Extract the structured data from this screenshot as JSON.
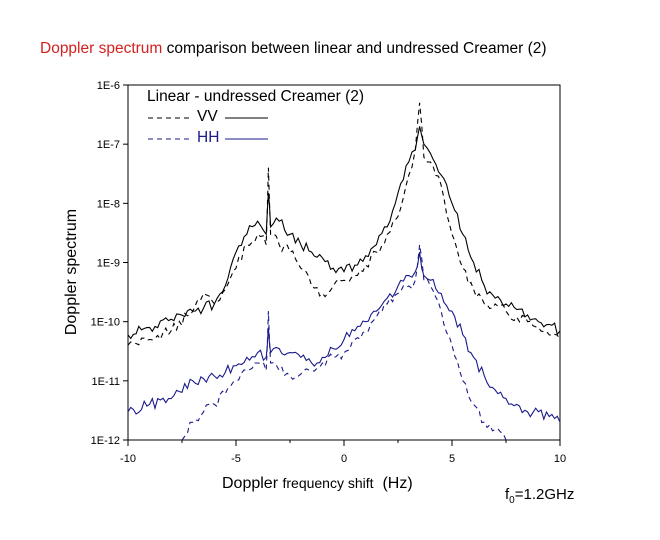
{
  "title": {
    "highlight": "Doppler spectrum",
    "rest": "comparison between linear and undressed Creamer (2)"
  },
  "xlabel": {
    "part1": "Doppler",
    "part2": "frequency shift",
    "part3": "(Hz)"
  },
  "ylabel": "Doppler spectrum",
  "annotation": {
    "prefix": "f",
    "sub": "0",
    "suffix": "=1.2GHz"
  },
  "colors": {
    "title_highlight": "#d42020",
    "vv": "#000000",
    "hh": "#1a1a8c"
  },
  "legend": {
    "title": "Linear - undressed Creamer (2)",
    "entries": [
      {
        "label": "VV",
        "color": "#000000"
      },
      {
        "label": "HH",
        "color": "#1a1a8c"
      }
    ]
  },
  "chart_data": {
    "type": "line",
    "title": "Doppler spectrum comparison between linear and undressed Creamer (2)",
    "xlabel": "Doppler frequency shift (Hz)",
    "ylabel": "Doppler spectrum",
    "xlim": [
      -10,
      10
    ],
    "ylim": [
      1e-12,
      1e-06
    ],
    "yscale": "log",
    "xticks": [
      "-10",
      "-5",
      "0",
      "5",
      "10"
    ],
    "yticks": [
      "1E-12",
      "1E-11",
      "1E-10",
      "1E-9",
      "1E-8",
      "1E-7",
      "1E-6"
    ],
    "series": [
      {
        "name": "VV Linear",
        "style": "dashed",
        "color": "#000000",
        "x": [
          -10,
          -9,
          -8,
          -7,
          -6.5,
          -6,
          -5.5,
          -5,
          -4.5,
          -4,
          -3.6,
          -3.5,
          -3.4,
          -3,
          -2.5,
          -2,
          -1.5,
          -1,
          -0.5,
          0,
          0.5,
          1,
          1.5,
          2,
          2.5,
          3,
          3.3,
          3.5,
          3.7,
          4,
          4.5,
          5,
          5.5,
          6,
          6.5,
          7,
          7.5,
          8,
          8.5,
          9,
          9.5,
          10
        ],
        "y": [
          4e-11,
          5e-11,
          7e-11,
          1.5e-10,
          3e-10,
          2e-10,
          3.5e-10,
          8e-10,
          2e-09,
          3e-09,
          2e-09,
          4e-08,
          3e-09,
          2e-09,
          1.5e-09,
          8e-10,
          4e-10,
          3e-10,
          4e-10,
          5e-10,
          6e-10,
          9e-10,
          1.5e-09,
          3e-09,
          6e-09,
          3e-08,
          8e-08,
          5e-07,
          6e-08,
          5e-08,
          2e-08,
          3e-09,
          8e-10,
          3.5e-10,
          2e-10,
          2e-10,
          1.5e-10,
          1.2e-10,
          1e-10,
          8e-11,
          6e-11,
          5e-11
        ]
      },
      {
        "name": "VV Creamer (2)",
        "style": "solid",
        "color": "#000000",
        "x": [
          -10,
          -9,
          -8,
          -7,
          -6,
          -5.5,
          -5,
          -4.5,
          -4,
          -3.6,
          -3.5,
          -3.4,
          -3,
          -2.5,
          -2,
          -1.5,
          -1,
          -0.5,
          0,
          0.5,
          1,
          1.5,
          2,
          2.5,
          3,
          3.3,
          3.5,
          3.7,
          4,
          4.5,
          5,
          5.5,
          6,
          6.5,
          7,
          7.5,
          8,
          8.5,
          9,
          9.5,
          10
        ],
        "y": [
          6e-11,
          8e-11,
          1.1e-10,
          1.5e-10,
          2e-10,
          4e-10,
          1.5e-09,
          3e-09,
          5e-09,
          3e-09,
          1.5e-08,
          4e-09,
          5e-09,
          3e-09,
          2e-09,
          1.5e-09,
          1.2e-09,
          8e-10,
          7e-10,
          9e-10,
          1.3e-09,
          2e-09,
          4e-09,
          1.5e-08,
          5e-08,
          8e-08,
          2e-07,
          1e-07,
          7e-08,
          3e-08,
          1e-08,
          3e-09,
          1e-09,
          4e-10,
          2.5e-10,
          2e-10,
          1.6e-10,
          1.3e-10,
          1e-10,
          9e-11,
          7e-11
        ]
      },
      {
        "name": "HH Linear",
        "style": "dashed",
        "color": "#1a1a8c",
        "x": [
          -7.5,
          -7,
          -6.5,
          -6,
          -5.5,
          -5,
          -4.5,
          -4,
          -3.6,
          -3.5,
          -3.4,
          -3,
          -2.5,
          -2,
          -1.5,
          -1,
          -0.5,
          0,
          0.5,
          1,
          1.5,
          2,
          2.5,
          3,
          3.3,
          3.5,
          3.7,
          4,
          4.5,
          5,
          5.5,
          6,
          6.5,
          7,
          7.5
        ],
        "y": [
          1e-12,
          2e-12,
          3e-12,
          4e-12,
          6e-12,
          1e-11,
          1.5e-11,
          2e-11,
          1.5e-11,
          1.5e-10,
          2e-11,
          1.5e-11,
          1.2e-11,
          1.3e-11,
          1.5e-11,
          2e-11,
          2.5e-11,
          3e-11,
          5e-11,
          7e-11,
          1.2e-10,
          2e-10,
          3e-10,
          4e-10,
          5e-10,
          2e-09,
          5e-10,
          4e-10,
          1.5e-10,
          4e-11,
          1e-11,
          4e-12,
          2e-12,
          1.5e-12,
          1e-12
        ]
      },
      {
        "name": "HH Creamer (2)",
        "style": "solid",
        "color": "#1a1a8c",
        "x": [
          -10,
          -9,
          -8,
          -7,
          -6,
          -5,
          -4.5,
          -4,
          -3.6,
          -3.5,
          -3.4,
          -3,
          -2.5,
          -2,
          -1.5,
          -1,
          -0.5,
          0,
          0.5,
          1,
          1.5,
          2,
          2.5,
          3,
          3.3,
          3.5,
          3.7,
          4,
          4.5,
          5,
          5.5,
          6,
          6.5,
          7,
          7.5,
          8,
          8.5,
          9,
          9.5,
          10
        ],
        "y": [
          3e-12,
          4e-12,
          5e-12,
          1e-11,
          1.2e-11,
          1.8e-11,
          2.5e-11,
          3e-11,
          2.5e-11,
          8e-11,
          3e-11,
          3.5e-11,
          3e-11,
          2.5e-11,
          2e-11,
          2.5e-11,
          3.5e-11,
          5e-11,
          7e-11,
          1e-10,
          1.5e-10,
          2.5e-10,
          4e-10,
          6e-10,
          7e-10,
          1.5e-09,
          6e-10,
          5e-10,
          3e-10,
          1.5e-10,
          6e-11,
          2.5e-11,
          1.2e-11,
          7e-12,
          5e-12,
          4e-12,
          3e-12,
          3e-12,
          2.5e-12,
          2e-12
        ]
      }
    ]
  }
}
